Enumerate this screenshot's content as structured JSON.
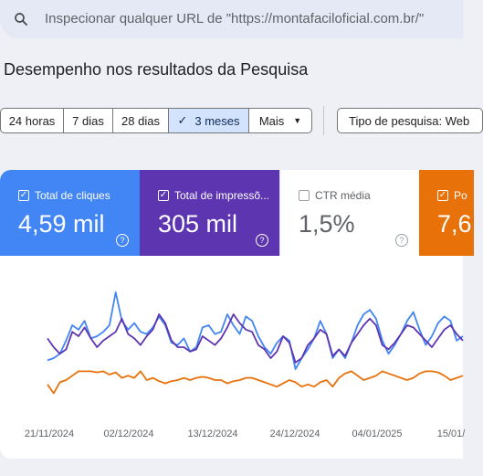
{
  "search": {
    "placeholder": "Inspecionar qualquer URL de \"https://montafaciloficial.com.br/\""
  },
  "page_title": "Desempenho nos resultados da Pesquisa",
  "date_filter": {
    "options": [
      "24 horas",
      "7 dias",
      "28 dias",
      "3 meses",
      "Mais"
    ],
    "selected": "3 meses",
    "check_glyph": "✓",
    "caret_glyph": "▼"
  },
  "search_type_chip": "Tipo de pesquisa: Web",
  "metrics": [
    {
      "label": "Total de cliques",
      "value": "4,59 mil",
      "checked": true,
      "color": "#4285f4"
    },
    {
      "label": "Total de impressõ...",
      "value": "305 mil",
      "checked": true,
      "color": "#5e35b1"
    },
    {
      "label": "CTR média",
      "value": "1,5%",
      "checked": false,
      "color": "#ffffff"
    },
    {
      "label": "Po",
      "value": "7,6",
      "checked": true,
      "color": "#e8710a"
    }
  ],
  "help_glyph": "?",
  "chart_data": {
    "type": "line",
    "x_ticks": [
      "21/11/2024",
      "02/12/2024",
      "13/12/2024",
      "24/12/2024",
      "04/01/2025",
      "15/01/"
    ],
    "series": [
      {
        "color": "#4285f4",
        "values": [
          38,
          40,
          44,
          56,
          70,
          66,
          74,
          58,
          60,
          64,
          70,
          100,
          74,
          66,
          72,
          64,
          62,
          68,
          78,
          70,
          54,
          52,
          58,
          46,
          50,
          68,
          70,
          62,
          64,
          80,
          70,
          62,
          78,
          74,
          60,
          50,
          44,
          54,
          60,
          56,
          30,
          40,
          48,
          58,
          74,
          62,
          40,
          48,
          40,
          54,
          70,
          80,
          84,
          76,
          56,
          44,
          52,
          62,
          74,
          82,
          66,
          52,
          60,
          72,
          78,
          74,
          56,
          60
        ]
      },
      {
        "color": "#5e35b1",
        "values": [
          58,
          50,
          44,
          48,
          64,
          60,
          68,
          58,
          50,
          56,
          60,
          64,
          76,
          62,
          58,
          52,
          60,
          66,
          80,
          72,
          56,
          50,
          50,
          46,
          48,
          60,
          56,
          52,
          58,
          68,
          80,
          72,
          66,
          64,
          52,
          48,
          40,
          46,
          60,
          54,
          36,
          40,
          52,
          58,
          66,
          62,
          42,
          48,
          42,
          54,
          62,
          70,
          76,
          70,
          52,
          48,
          54,
          62,
          70,
          68,
          62,
          56,
          50,
          58,
          66,
          70,
          62,
          56
        ]
      },
      {
        "color": "#e8710a",
        "values": [
          16,
          8,
          18,
          20,
          24,
          28,
          28,
          28,
          27,
          28,
          25,
          27,
          22,
          24,
          22,
          28,
          20,
          22,
          19,
          17,
          19,
          20,
          22,
          20,
          22,
          23,
          22,
          20,
          20,
          17,
          19,
          20,
          22,
          22,
          20,
          18,
          16,
          14,
          17,
          20,
          18,
          14,
          16,
          14,
          18,
          20,
          14,
          22,
          26,
          28,
          24,
          20,
          22,
          24,
          28,
          26,
          24,
          22,
          20,
          22,
          26,
          28,
          28,
          27,
          24,
          20,
          22,
          24
        ]
      }
    ]
  }
}
